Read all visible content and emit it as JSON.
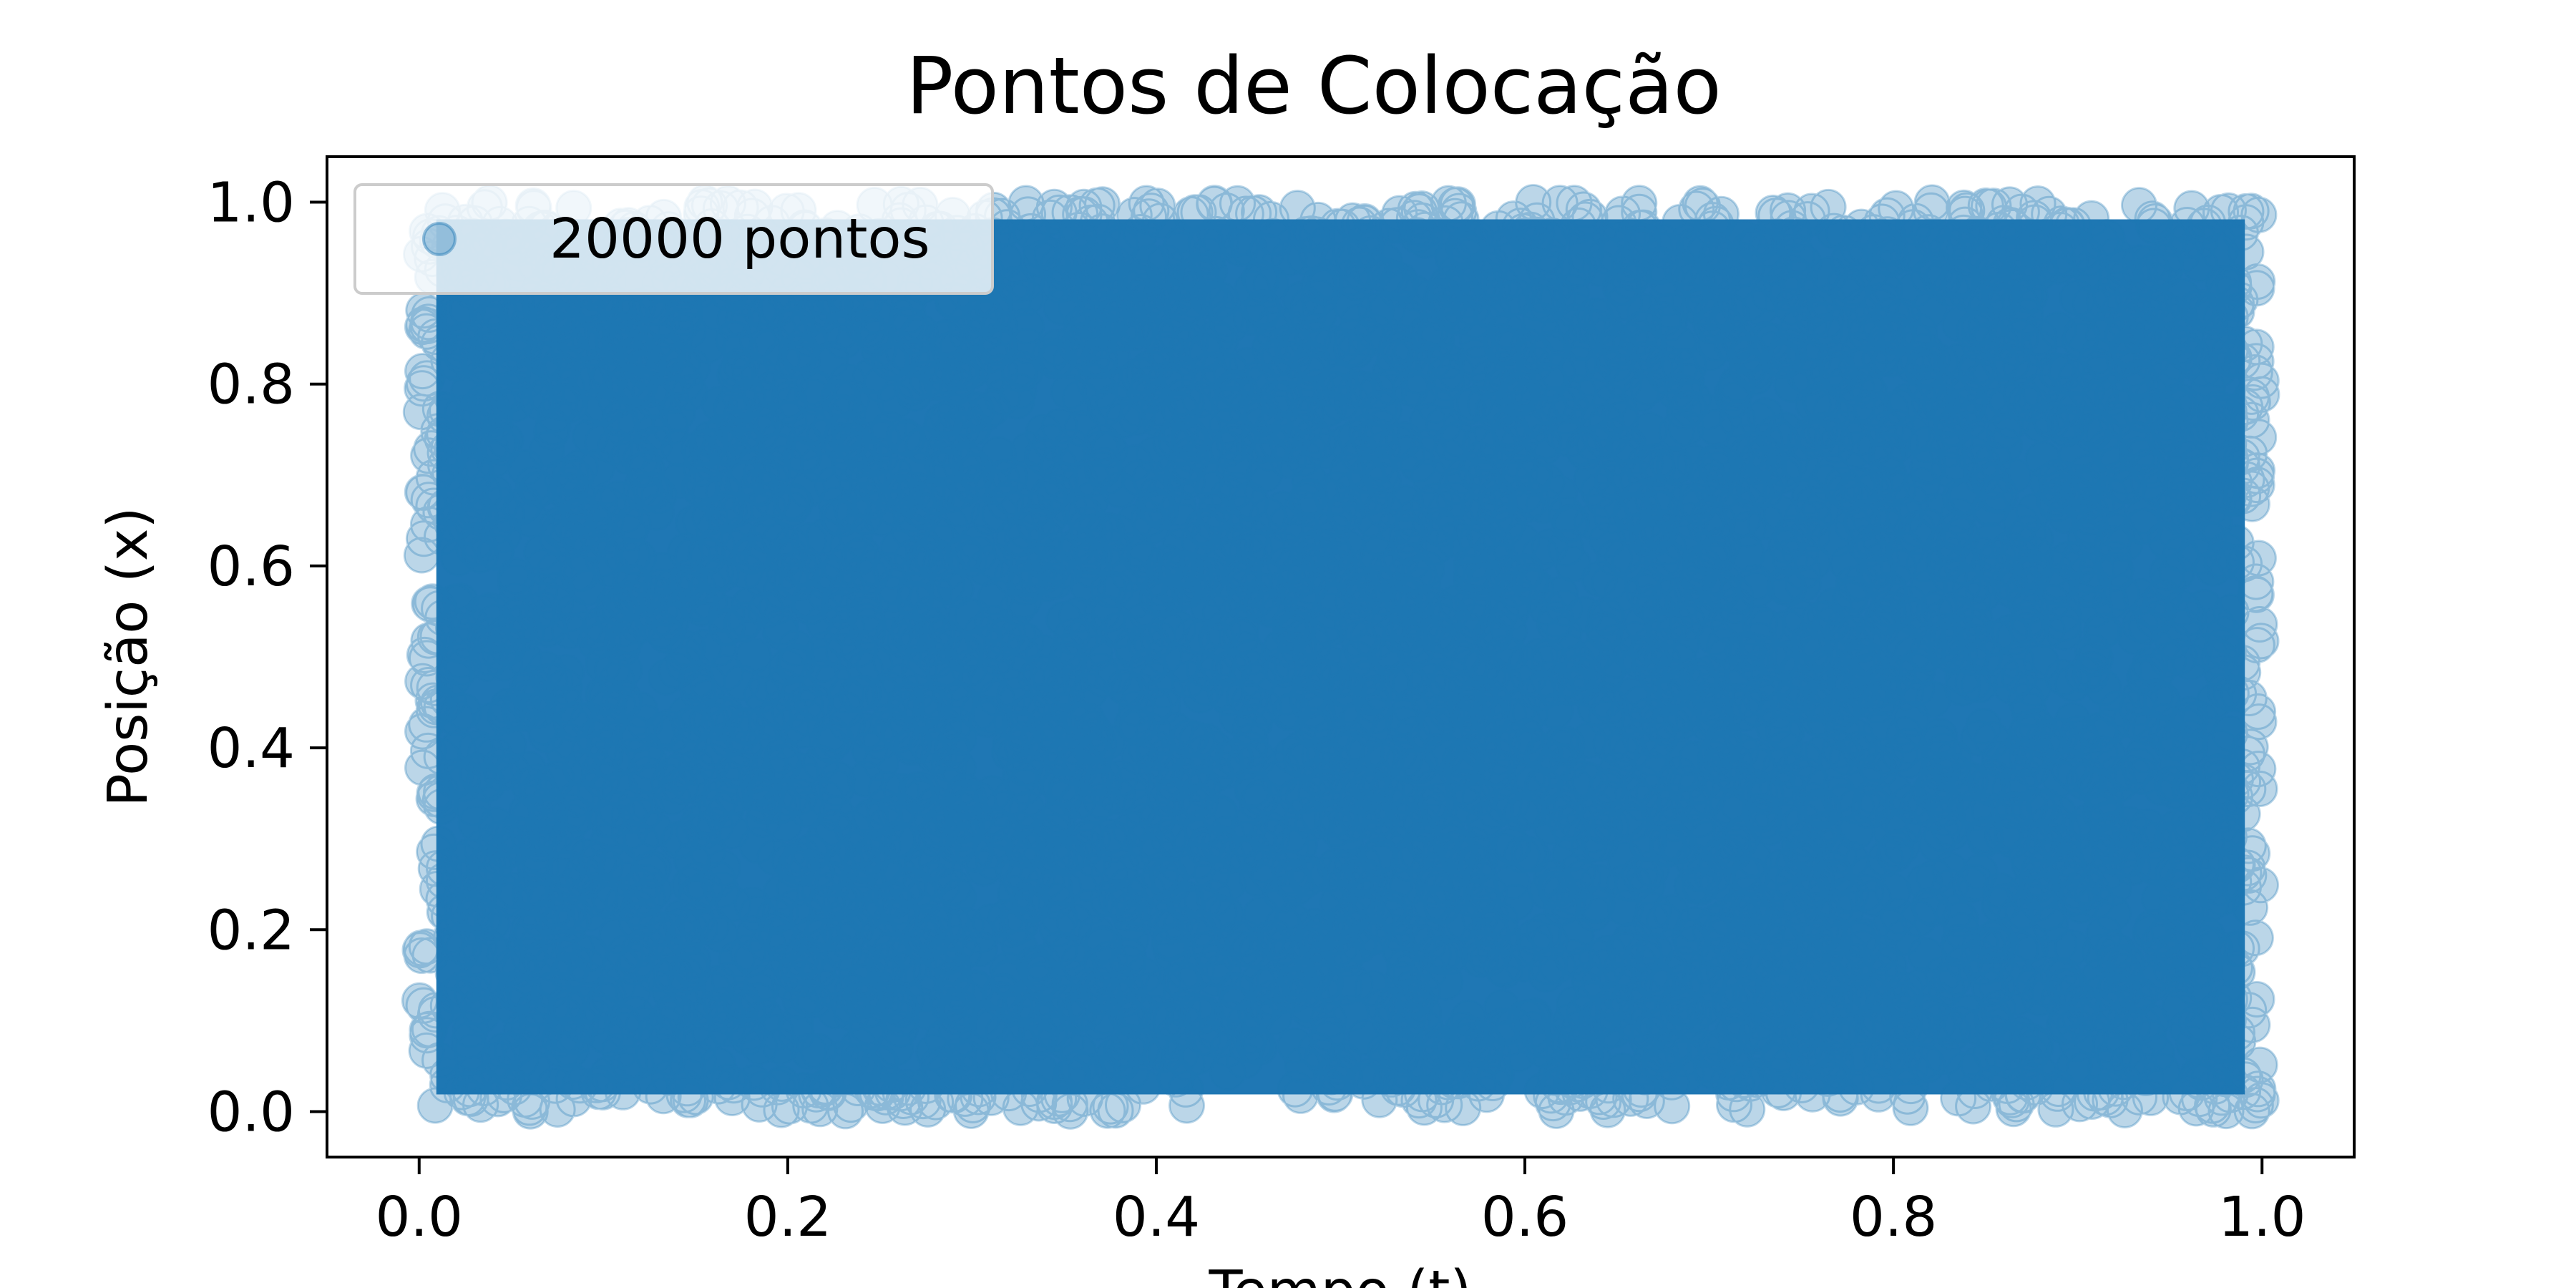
{
  "chart_data": {
    "type": "scatter",
    "title": "Pontos de Colocação",
    "xlabel": "Tempo (t)",
    "ylabel": "Posição (x)",
    "xlim": [
      -0.05,
      1.05
    ],
    "ylim": [
      -0.05,
      1.05
    ],
    "xticks": [
      0.0,
      0.2,
      0.4,
      0.6,
      0.8,
      1.0
    ],
    "yticks": [
      0.0,
      0.2,
      0.4,
      0.6,
      0.8,
      1.0
    ],
    "xtick_labels": [
      "0.0",
      "0.2",
      "0.4",
      "0.6",
      "0.8",
      "1.0"
    ],
    "ytick_labels": [
      "0.0",
      "0.2",
      "0.4",
      "0.6",
      "0.8",
      "1.0"
    ],
    "grid": false,
    "legend": {
      "position": "upper-left"
    },
    "series": [
      {
        "name": "20000 pontos",
        "point_count": 20000,
        "distribution": "uniform",
        "x_range": [
          0.0,
          1.0
        ],
        "y_range": [
          0.0,
          1.0
        ],
        "color": "#1f77b4",
        "alpha": 0.5
      }
    ]
  }
}
